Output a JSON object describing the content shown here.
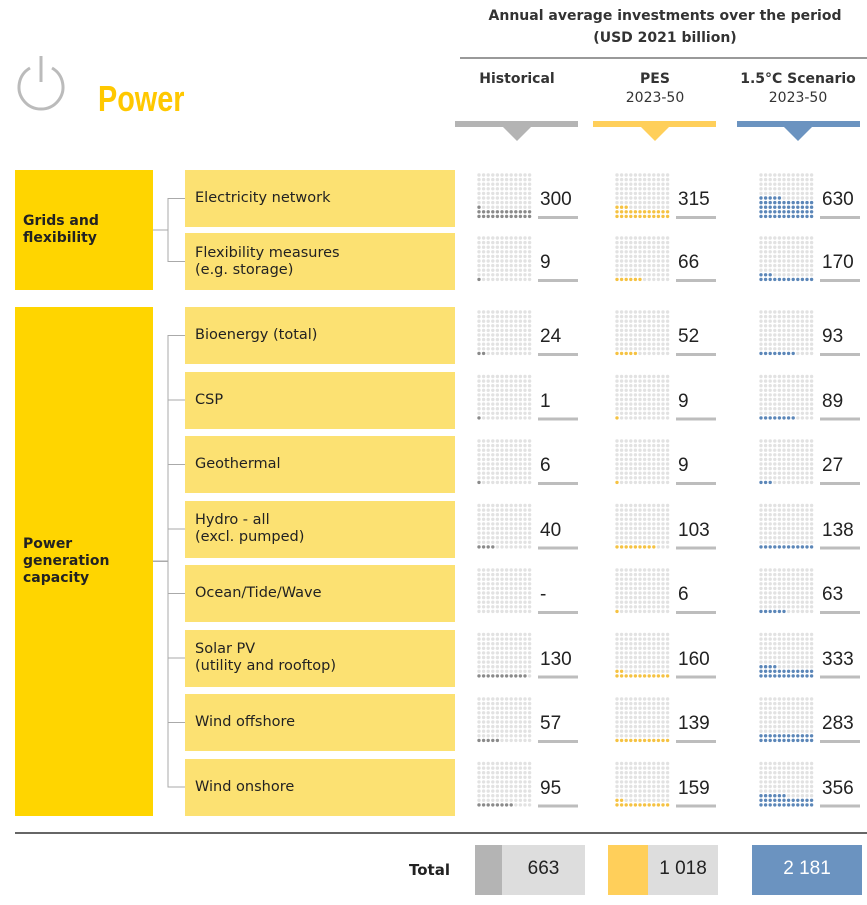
{
  "header": {
    "title": "Annual average investments over the period",
    "unit": "(USD 2021 billion)"
  },
  "sector": "Power",
  "columns": [
    {
      "name": "Historical",
      "color": "#b4b4b4",
      "dot_color": "#8a8a8a"
    },
    {
      "name": "PES",
      "period": "2023-50",
      "color": "#ffcf5a",
      "dot_color": "#f5c242"
    },
    {
      "name": "1.5°C Scenario",
      "period": "2023-50",
      "color": "#6b93c0",
      "dot_color": "#5b86b8"
    }
  ],
  "groups": [
    {
      "label": "Grids and flexibility",
      "rows": [
        {
          "label": [
            "Electricity network"
          ],
          "values": [
            300,
            315,
            630
          ]
        },
        {
          "label": [
            "Flexibility measures",
            "(e.g. storage)"
          ],
          "values": [
            9,
            66,
            170
          ]
        }
      ]
    },
    {
      "label": "Power generation capacity",
      "rows": [
        {
          "label": [
            "Bioenergy (total)"
          ],
          "values": [
            24,
            52,
            93
          ]
        },
        {
          "label": [
            "CSP"
          ],
          "values": [
            1,
            9,
            89
          ]
        },
        {
          "label": [
            "Geothermal"
          ],
          "values": [
            6,
            9,
            27
          ]
        },
        {
          "label": [
            "Hydro - all",
            "(excl. pumped)"
          ],
          "values": [
            40,
            103,
            138
          ]
        },
        {
          "label": [
            "Ocean/Tide/Wave"
          ],
          "values": [
            "-",
            6,
            63
          ]
        },
        {
          "label": [
            "Solar PV",
            "(utility and rooftop)"
          ],
          "values": [
            130,
            160,
            333
          ]
        },
        {
          "label": [
            "Wind offshore"
          ],
          "values": [
            57,
            139,
            283
          ]
        },
        {
          "label": [
            "Wind onshore"
          ],
          "values": [
            95,
            159,
            356
          ]
        }
      ]
    }
  ],
  "total": {
    "label": "Total",
    "values": [
      663,
      1018,
      2181
    ],
    "value_labels": [
      "663",
      "1 018",
      "2 181"
    ]
  }
}
